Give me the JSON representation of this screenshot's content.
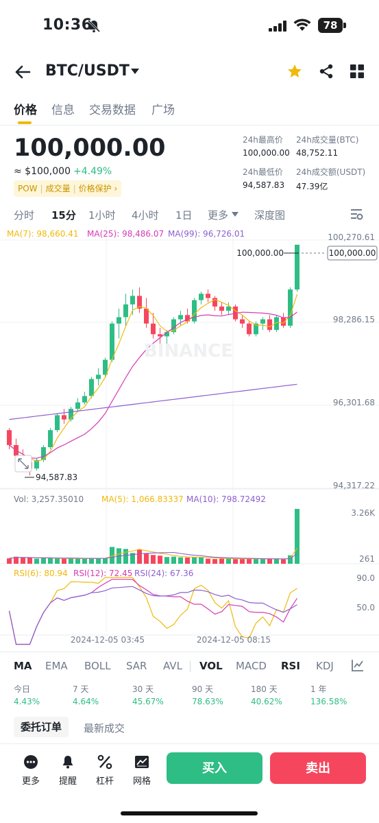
{
  "status_bar": {
    "time": "10:36",
    "battery": "78"
  },
  "header": {
    "pair": "BTC/USDT"
  },
  "tabs": [
    "价格",
    "信息",
    "交易数据",
    "广场"
  ],
  "price": {
    "last": "100,000.00",
    "fiat": "≈ $100,000",
    "change": "+4.49%",
    "tags": [
      "POW",
      "成交量",
      "价格保护 ›"
    ]
  },
  "stats": {
    "high_label": "24h最高价",
    "high": "100,000.00",
    "vol_btc_label": "24h成交量(BTC)",
    "vol_btc": "48,752.11",
    "low_label": "24h最低价",
    "low": "94,587.83",
    "vol_usdt_label": "24h成交额(USDT)",
    "vol_usdt": "47.39亿"
  },
  "intervals": [
    "分时",
    "15分",
    "1小时",
    "4小时",
    "1日",
    "更多",
    "深度图"
  ],
  "active_interval": "15分",
  "chart": {
    "ma_legend": {
      "ma7": "MA(7): 98,660.41",
      "ma25": "MA(25): 98,486.07",
      "ma99": "MA(99): 96,726.01"
    },
    "y_labels": [
      "100,270.61",
      "98,286.15",
      "96,301.68",
      "94,317.22"
    ],
    "last_price_tag": "100,000.00",
    "high_marker": "100,000.00",
    "low_marker": "94,587.83",
    "watermark": "BINANCE",
    "vol_legend": {
      "vol": "Vol: 3,257.35010",
      "ma5": "MA(5): 1,066.83337",
      "ma10": "MA(10): 798.72492"
    },
    "vol_y_labels": [
      "3.26K",
      "261"
    ],
    "rsi_legend": {
      "rsi6": "RSI(6): 80.94",
      "rsi12": "RSI(12): 72.45",
      "rsi24": "RSI(24): 67.36"
    },
    "rsi_y_labels": [
      "90.0",
      "50.0"
    ],
    "x_labels": [
      "2024-12-05 03:45",
      "2024-12-05 08:15"
    ],
    "colors": {
      "up": "#2ebd85",
      "down": "#f6465d",
      "ma7": "#f0b90b",
      "ma25": "#d63ab5",
      "ma99": "#8c5fd0"
    }
  },
  "chart_data": {
    "type": "candlestick",
    "interval": "15m",
    "candles": [
      {
        "o": 95650,
        "h": 95700,
        "l": 95200,
        "c": 95300
      },
      {
        "o": 95300,
        "h": 95450,
        "l": 94950,
        "c": 95050
      },
      {
        "o": 95050,
        "h": 95200,
        "l": 94780,
        "c": 94900
      },
      {
        "o": 94900,
        "h": 94950,
        "l": 94587.83,
        "c": 94750
      },
      {
        "o": 94750,
        "h": 95000,
        "l": 94700,
        "c": 94950
      },
      {
        "o": 94950,
        "h": 95300,
        "l": 94900,
        "c": 95250
      },
      {
        "o": 95250,
        "h": 95700,
        "l": 95200,
        "c": 95650
      },
      {
        "o": 95650,
        "h": 96050,
        "l": 95600,
        "c": 96000
      },
      {
        "o": 96000,
        "h": 96150,
        "l": 95800,
        "c": 95900
      },
      {
        "o": 95900,
        "h": 96200,
        "l": 95850,
        "c": 96150
      },
      {
        "o": 96150,
        "h": 96400,
        "l": 96100,
        "c": 96300
      },
      {
        "o": 96300,
        "h": 96550,
        "l": 96250,
        "c": 96450
      },
      {
        "o": 96450,
        "h": 96900,
        "l": 96400,
        "c": 96850
      },
      {
        "o": 96850,
        "h": 97100,
        "l": 96700,
        "c": 96950
      },
      {
        "o": 96950,
        "h": 97350,
        "l": 96900,
        "c": 97300
      },
      {
        "o": 97300,
        "h": 98200,
        "l": 97250,
        "c": 98150
      },
      {
        "o": 98150,
        "h": 98500,
        "l": 97800,
        "c": 98300
      },
      {
        "o": 98300,
        "h": 98850,
        "l": 98100,
        "c": 98600
      },
      {
        "o": 98600,
        "h": 98950,
        "l": 98350,
        "c": 98800
      },
      {
        "o": 98800,
        "h": 99000,
        "l": 98400,
        "c": 98500
      },
      {
        "o": 98500,
        "h": 98750,
        "l": 98050,
        "c": 98150
      },
      {
        "o": 98150,
        "h": 98400,
        "l": 97800,
        "c": 97900
      },
      {
        "o": 97900,
        "h": 98050,
        "l": 97600,
        "c": 97850
      },
      {
        "o": 97850,
        "h": 98000,
        "l": 97650,
        "c": 97950
      },
      {
        "o": 97950,
        "h": 98300,
        "l": 97900,
        "c": 98250
      },
      {
        "o": 98250,
        "h": 98450,
        "l": 98100,
        "c": 98350
      },
      {
        "o": 98350,
        "h": 98500,
        "l": 98150,
        "c": 98200
      },
      {
        "o": 98200,
        "h": 98750,
        "l": 98150,
        "c": 98700
      },
      {
        "o": 98700,
        "h": 98900,
        "l": 98600,
        "c": 98850
      },
      {
        "o": 98850,
        "h": 98950,
        "l": 98650,
        "c": 98750
      },
      {
        "o": 98750,
        "h": 98800,
        "l": 98450,
        "c": 98550
      },
      {
        "o": 98550,
        "h": 98650,
        "l": 98350,
        "c": 98450
      },
      {
        "o": 98450,
        "h": 98650,
        "l": 98350,
        "c": 98550
      },
      {
        "o": 98550,
        "h": 98600,
        "l": 98200,
        "c": 98250
      },
      {
        "o": 98250,
        "h": 98350,
        "l": 98050,
        "c": 98150
      },
      {
        "o": 98150,
        "h": 98200,
        "l": 97850,
        "c": 97900
      },
      {
        "o": 97900,
        "h": 98200,
        "l": 97850,
        "c": 98150
      },
      {
        "o": 98150,
        "h": 98300,
        "l": 98000,
        "c": 98250
      },
      {
        "o": 98250,
        "h": 98350,
        "l": 97950,
        "c": 98000
      },
      {
        "o": 98000,
        "h": 98350,
        "l": 97950,
        "c": 98300
      },
      {
        "o": 98300,
        "h": 98400,
        "l": 98050,
        "c": 98100
      },
      {
        "o": 98100,
        "h": 99000,
        "l": 98050,
        "c": 98950
      },
      {
        "o": 98950,
        "h": 100000,
        "l": 98900,
        "c": 100000
      }
    ],
    "ma7_end": 98660.41,
    "ma25_end": 98486.07,
    "ma99_end": 96726.01,
    "volume": [
      320,
      420,
      380,
      360,
      300,
      340,
      330,
      310,
      300,
      320,
      300,
      310,
      330,
      320,
      340,
      1000,
      920,
      880,
      640,
      860,
      600,
      520,
      480,
      400,
      420,
      380,
      370,
      400,
      380,
      300,
      280,
      300,
      310,
      280,
      290,
      300,
      290,
      280,
      300,
      290,
      260,
      500,
      3257.35
    ],
    "rsi6_end": 80.94,
    "rsi12_end": 72.45,
    "rsi24_end": 67.36,
    "ylim": [
      94317.22,
      100270.61
    ],
    "vol_ylim": [
      0,
      3260
    ],
    "x_ticks": [
      "2024-12-05 03:45",
      "2024-12-05 08:15"
    ]
  },
  "indicators": [
    "MA",
    "EMA",
    "BOLL",
    "SAR",
    "AVL",
    "VOL",
    "MACD",
    "RSI",
    "KDJ"
  ],
  "active_indicators": [
    "MA",
    "VOL",
    "RSI"
  ],
  "performance": [
    {
      "label": "今日",
      "value": "4.43%"
    },
    {
      "label": "7 天",
      "value": "4.64%"
    },
    {
      "label": "30 天",
      "value": "45.67%"
    },
    {
      "label": "90 天",
      "value": "78.63%"
    },
    {
      "label": "180 天",
      "value": "40.62%"
    },
    {
      "label": "1 年",
      "value": "136.58%"
    }
  ],
  "order_tabs": [
    "委托订单",
    "最新成交"
  ],
  "bottom_bar": {
    "more": "更多",
    "alert": "提醒",
    "leverage": "杠杆",
    "grid": "网格",
    "buy": "买入",
    "sell": "卖出"
  }
}
